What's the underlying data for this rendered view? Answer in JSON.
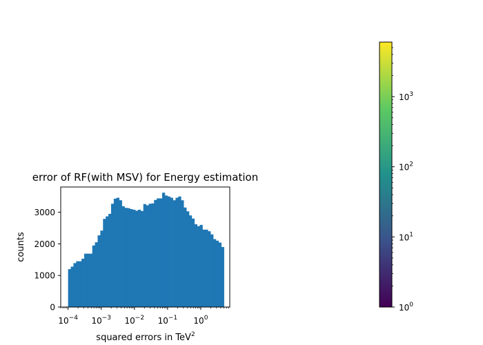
{
  "chart_data": [
    {
      "type": "bar",
      "title": "error of RF(with MSV) for Energy estimation",
      "xlabel": "squared errors in TeV",
      "xlabel_superscript": "2",
      "ylabel": "counts",
      "xscale": "log",
      "xlim": [
        6e-05,
        7.5
      ],
      "ylim": [
        0,
        3800
      ],
      "bin_range": [
        0.0001,
        5.0
      ],
      "grid": false,
      "legend": "none",
      "bar_color": "#1f77b4",
      "xticks": [
        {
          "base": "10",
          "exp": "−4",
          "value": 0.0001
        },
        {
          "base": "10",
          "exp": "−3",
          "value": 0.001
        },
        {
          "base": "10",
          "exp": "−2",
          "value": 0.01
        },
        {
          "base": "10",
          "exp": "−1",
          "value": 0.1
        },
        {
          "base": "10",
          "exp": "0",
          "value": 1
        }
      ],
      "yticks": [
        {
          "label": "0",
          "value": 0
        },
        {
          "label": "1000",
          "value": 1000
        },
        {
          "label": "2000",
          "value": 2000
        },
        {
          "label": "3000",
          "value": 3000
        }
      ],
      "values": [
        1200,
        1280,
        1390,
        1450,
        1450,
        1530,
        1690,
        1690,
        1690,
        1950,
        2050,
        2270,
        2420,
        2790,
        2870,
        2950,
        3270,
        3430,
        3460,
        3380,
        3190,
        3140,
        3130,
        3100,
        3080,
        3050,
        3080,
        3040,
        3260,
        3220,
        3270,
        3280,
        3390,
        3440,
        3440,
        3620,
        3530,
        3500,
        3460,
        3380,
        3460,
        3500,
        3380,
        3150,
        3030,
        2900,
        2800,
        2620,
        2560,
        2600,
        2450,
        2450,
        2400,
        2300,
        2150,
        2100,
        2040,
        1900
      ]
    },
    {
      "type": "colorbar",
      "scale": "log",
      "range": [
        1,
        6000
      ],
      "colormap": "viridis",
      "colormap_stops": [
        "#440154",
        "#3b528b",
        "#21918c",
        "#5ec962",
        "#fde725"
      ],
      "ticks": [
        {
          "base": "10",
          "exp": "0",
          "value": 1
        },
        {
          "base": "10",
          "exp": "1",
          "value": 10
        },
        {
          "base": "10",
          "exp": "2",
          "value": 100
        },
        {
          "base": "10",
          "exp": "3",
          "value": 1000
        }
      ]
    }
  ]
}
